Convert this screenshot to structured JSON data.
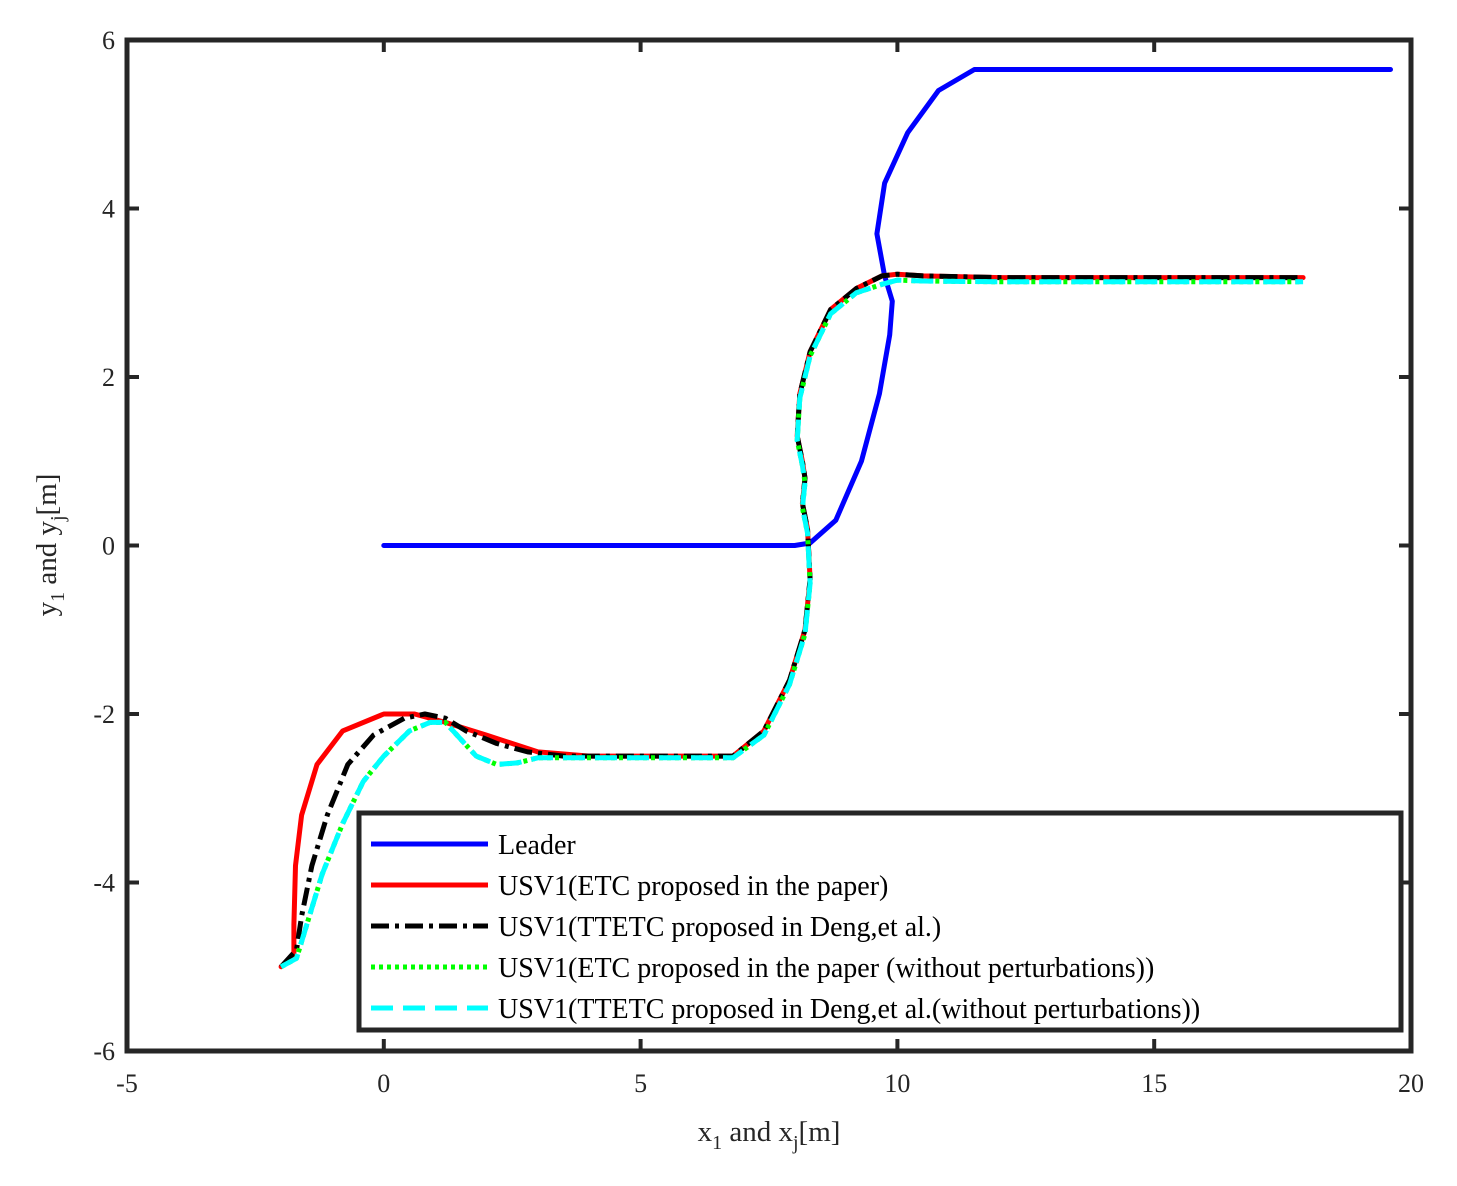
{
  "chart_data": {
    "type": "line",
    "title": "",
    "xlabel": {
      "p1": "x",
      "s1": "1",
      "p2": " and x",
      "s2": "j",
      "p3": "[m]"
    },
    "ylabel": {
      "p1": "y",
      "s1": "1",
      "p2": " and y",
      "s2": "j",
      "p3": "[m]"
    },
    "xlim": [
      -5,
      20
    ],
    "ylim": [
      -6,
      6
    ],
    "xticks": [
      -5,
      0,
      5,
      10,
      15,
      20
    ],
    "yticks": [
      -6,
      -4,
      -2,
      0,
      2,
      4,
      6
    ],
    "grid": false,
    "legend_position": "bottom-right",
    "series": [
      {
        "name": "Leader",
        "color": "#0000ff",
        "style": "solid",
        "x": [
          0,
          2,
          4,
          6,
          8,
          8.3,
          8.8,
          9.3,
          9.65,
          9.85,
          9.9,
          9.75,
          9.6,
          9.75,
          10.2,
          10.8,
          11.5,
          13,
          15,
          17,
          19.6
        ],
        "y": [
          0,
          0,
          0,
          0,
          0,
          0.03,
          0.3,
          1.0,
          1.8,
          2.5,
          2.9,
          3.2,
          3.7,
          4.3,
          4.9,
          5.4,
          5.65,
          5.65,
          5.65,
          5.65,
          5.65
        ]
      },
      {
        "name": "USV1(ETC proposed in the paper)",
        "color": "#ff0000",
        "style": "solid",
        "x": [
          -2,
          -1.75,
          -1.75,
          -1.72,
          -1.6,
          -1.3,
          -0.8,
          0,
          0.6,
          1.2,
          2,
          3,
          4,
          5,
          6,
          6.8,
          7.4,
          7.9,
          8.2,
          8.3,
          8.25,
          8.15,
          8.2,
          8.15,
          8.05,
          8.1,
          8.3,
          8.7,
          9.2,
          9.7,
          10,
          10.5,
          12,
          14,
          16,
          17.9
        ],
        "y": [
          -5,
          -4.85,
          -4.5,
          -3.8,
          -3.2,
          -2.6,
          -2.2,
          -2.0,
          -2.0,
          -2.1,
          -2.25,
          -2.45,
          -2.5,
          -2.5,
          -2.5,
          -2.5,
          -2.2,
          -1.6,
          -1.0,
          -0.4,
          0.2,
          0.5,
          0.8,
          1.0,
          1.3,
          1.8,
          2.3,
          2.8,
          3.05,
          3.2,
          3.22,
          3.2,
          3.18,
          3.18,
          3.18,
          3.18
        ]
      },
      {
        "name": "USV1(TTETC proposed in Deng,et al.)",
        "color": "#000000",
        "style": "dashdot",
        "x": [
          -2,
          -1.7,
          -1.6,
          -1.4,
          -1.1,
          -0.7,
          -0.2,
          0.4,
          0.8,
          1.2,
          1.6,
          2.2,
          2.8,
          3.5,
          4,
          5,
          6,
          6.8,
          7.4,
          7.9,
          8.2,
          8.3,
          8.25,
          8.15,
          8.2,
          8.15,
          8.05,
          8.1,
          8.3,
          8.7,
          9.2,
          9.7,
          10,
          10.5,
          12,
          14,
          16,
          17.9
        ],
        "y": [
          -5,
          -4.8,
          -4.4,
          -3.8,
          -3.2,
          -2.6,
          -2.25,
          -2.05,
          -2.0,
          -2.05,
          -2.2,
          -2.35,
          -2.45,
          -2.5,
          -2.5,
          -2.5,
          -2.5,
          -2.5,
          -2.2,
          -1.6,
          -1.0,
          -0.4,
          0.2,
          0.5,
          0.8,
          1.0,
          1.3,
          1.8,
          2.3,
          2.8,
          3.05,
          3.2,
          3.22,
          3.2,
          3.18,
          3.18,
          3.18,
          3.18
        ]
      },
      {
        "name": "USV1(ETC proposed in the paper (without perturbations))",
        "color": "#00ff00",
        "style": "dotted",
        "x": [
          -2,
          -1.7,
          -1.5,
          -1.2,
          -0.8,
          -0.4,
          0,
          0.5,
          0.9,
          1.2,
          1.5,
          1.8,
          2.2,
          2.6,
          3,
          4,
          5,
          6,
          6.8,
          7.4,
          7.9,
          8.2,
          8.3,
          8.25,
          8.15,
          8.2,
          8.15,
          8.05,
          8.1,
          8.3,
          8.7,
          9.2,
          9.7,
          10,
          10.5,
          12,
          14,
          16,
          17.9
        ],
        "y": [
          -5,
          -4.9,
          -4.5,
          -3.9,
          -3.3,
          -2.8,
          -2.5,
          -2.2,
          -2.1,
          -2.1,
          -2.3,
          -2.5,
          -2.6,
          -2.58,
          -2.52,
          -2.52,
          -2.52,
          -2.52,
          -2.52,
          -2.25,
          -1.65,
          -1.05,
          -0.45,
          0.15,
          0.45,
          0.75,
          0.95,
          1.25,
          1.75,
          2.25,
          2.75,
          3.0,
          3.1,
          3.15,
          3.14,
          3.13,
          3.13,
          3.13,
          3.13
        ]
      },
      {
        "name": "USV1(TTETC proposed in Deng,et al.(without perturbations))",
        "color": "#00ffff",
        "style": "dashed",
        "x": [
          -2,
          -1.7,
          -1.5,
          -1.2,
          -0.8,
          -0.4,
          0,
          0.5,
          0.9,
          1.2,
          1.5,
          1.8,
          2.2,
          2.6,
          3,
          4,
          5,
          6,
          6.8,
          7.4,
          7.9,
          8.2,
          8.3,
          8.25,
          8.15,
          8.2,
          8.15,
          8.05,
          8.1,
          8.3,
          8.7,
          9.2,
          9.7,
          10,
          10.5,
          12,
          14,
          16,
          17.9
        ],
        "y": [
          -5,
          -4.9,
          -4.5,
          -3.9,
          -3.3,
          -2.8,
          -2.5,
          -2.2,
          -2.1,
          -2.1,
          -2.3,
          -2.5,
          -2.6,
          -2.58,
          -2.52,
          -2.52,
          -2.52,
          -2.52,
          -2.52,
          -2.25,
          -1.65,
          -1.05,
          -0.45,
          0.15,
          0.45,
          0.75,
          0.95,
          1.25,
          1.75,
          2.25,
          2.75,
          3.0,
          3.1,
          3.15,
          3.14,
          3.13,
          3.13,
          3.13,
          3.13
        ]
      }
    ]
  }
}
